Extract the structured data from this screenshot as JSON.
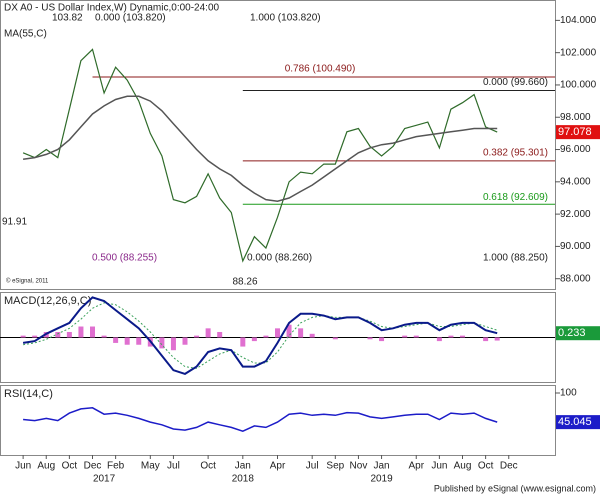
{
  "chart_data": {
    "type": "line",
    "title": "DX A0 - US Dollar Index,W) Dynamic,0:00-24:00",
    "x": [
      "2016-06",
      "2016-07",
      "2016-08",
      "2016-09",
      "2016-10",
      "2016-11",
      "2016-12",
      "2017-01",
      "2017-02",
      "2017-03",
      "2017-04",
      "2017-05",
      "2017-06",
      "2017-07",
      "2017-08",
      "2017-09",
      "2017-10",
      "2017-11",
      "2017-12",
      "2018-01",
      "2018-02",
      "2018-03",
      "2018-04",
      "2018-05",
      "2018-06",
      "2018-07",
      "2018-08",
      "2018-09",
      "2018-10",
      "2018-11",
      "2018-12",
      "2019-01",
      "2019-02",
      "2019-03",
      "2019-04",
      "2019-05",
      "2019-06",
      "2019-07",
      "2019-08",
      "2019-09",
      "2019-10",
      "2019-11"
    ],
    "xlim": [
      "2016-04",
      "2020-04"
    ],
    "xticks": [
      {
        "value": "2016-06",
        "label": "Jun"
      },
      {
        "value": "2016-08",
        "label": "Aug"
      },
      {
        "value": "2016-10",
        "label": "Oct"
      },
      {
        "value": "2016-12",
        "label": "Dec"
      },
      {
        "value": "2017-02",
        "label": "Feb"
      },
      {
        "value": "2017-05",
        "label": "May"
      },
      {
        "value": "2017-07",
        "label": "Jul"
      },
      {
        "value": "2017-10",
        "label": "Oct"
      },
      {
        "value": "2018-01",
        "label": "Jan"
      },
      {
        "value": "2018-04",
        "label": "Apr"
      },
      {
        "value": "2018-07",
        "label": "Jul"
      },
      {
        "value": "2018-09",
        "label": "Sep"
      },
      {
        "value": "2018-11",
        "label": "Nov"
      },
      {
        "value": "2019-01",
        "label": "Jan"
      },
      {
        "value": "2019-04",
        "label": "Apr"
      },
      {
        "value": "2019-06",
        "label": "Jun"
      },
      {
        "value": "2019-08",
        "label": "Aug"
      },
      {
        "value": "2019-10",
        "label": "Oct"
      },
      {
        "value": "2019-12",
        "label": "Dec"
      }
    ],
    "year_ticks": [
      {
        "value": "2017-01",
        "label": "2017"
      },
      {
        "value": "2018-01",
        "label": "2018"
      },
      {
        "value": "2019-01",
        "label": "2019"
      }
    ],
    "ylim": [
      87.3,
      105.2
    ],
    "yticks": [
      {
        "value": 88,
        "label": "88.000"
      },
      {
        "value": 90,
        "label": "90.000"
      },
      {
        "value": 92,
        "label": "92.000"
      },
      {
        "value": 94,
        "label": "94.000"
      },
      {
        "value": 96,
        "label": "96.000"
      },
      {
        "value": 98,
        "label": "98.000"
      },
      {
        "value": 100,
        "label": "100.000"
      },
      {
        "value": 102,
        "label": "102.000"
      },
      {
        "value": 104,
        "label": "104.000"
      }
    ],
    "series": [
      {
        "color": "#2f6b2a",
        "values": [
          95.8,
          95.5,
          96.0,
          95.5,
          98.5,
          101.5,
          102.2,
          99.5,
          101.1,
          100.3,
          99.0,
          97.0,
          95.6,
          92.9,
          92.7,
          93.1,
          94.5,
          93.0,
          92.1,
          89.1,
          90.6,
          89.9,
          91.8,
          94.0,
          94.6,
          94.5,
          95.1,
          95.1,
          97.1,
          97.3,
          96.2,
          95.6,
          96.2,
          97.3,
          97.5,
          97.7,
          96.1,
          98.5,
          98.9,
          99.4,
          97.4,
          97.078
        ]
      },
      {
        "name": "MA(55,C)",
        "color": "#555555",
        "values": [
          95.4,
          95.5,
          95.7,
          96.0,
          96.6,
          97.4,
          98.2,
          98.7,
          99.1,
          99.3,
          99.3,
          99.0,
          98.4,
          97.6,
          96.8,
          96.0,
          95.3,
          94.8,
          94.4,
          93.8,
          93.3,
          92.9,
          92.8,
          93.0,
          93.4,
          93.8,
          94.3,
          94.8,
          95.3,
          95.8,
          96.1,
          96.3,
          96.4,
          96.6,
          96.8,
          96.9,
          97.0,
          97.1,
          97.2,
          97.3,
          97.3,
          97.3
        ]
      }
    ],
    "fib_levels": [
      {
        "label": "0.786 (100.490)",
        "value": 100.49,
        "color": "#8b1a1a",
        "from": "2016-12"
      },
      {
        "label": "0.000 (99.660)",
        "value": 99.66,
        "color": "#222222",
        "from": "2018-01"
      },
      {
        "label": "0.382 (95.301)",
        "value": 95.301,
        "color": "#8b1a1a",
        "from": "2018-01"
      },
      {
        "label": "0.618 (92.609)",
        "value": 92.609,
        "color": "#1a9a1a",
        "from": "2018-01"
      }
    ],
    "notes": [
      {
        "label": "0.000 (103.820)",
        "color": "#222222"
      },
      {
        "label": "1.000 (103.820)",
        "color": "#222222"
      },
      {
        "label": "0.500 (88.255)",
        "color": "#8b2a8b"
      },
      {
        "label": "0.000 (88.260)",
        "color": "#222222"
      },
      {
        "label": "1.000 (88.250)",
        "color": "#222222"
      },
      {
        "label": "103.82",
        "color": "#222222"
      },
      {
        "label": "91.91",
        "color": "#222222"
      },
      {
        "label": "88.26",
        "color": "#222222"
      }
    ],
    "credit": "© eSignal, 2011",
    "footer": "Published by eSignal (www.esignal.com)",
    "macd": {
      "title": "MACD(12,26,9,C)",
      "ylim": [
        -2.5,
        2.44
      ],
      "zero": 0,
      "macd": {
        "color": "#0a1a8a",
        "values": [
          -0.3,
          -0.2,
          0.2,
          0.5,
          0.8,
          1.6,
          2.2,
          2.0,
          1.5,
          1.0,
          0.5,
          -0.2,
          -1.0,
          -1.8,
          -2.0,
          -1.6,
          -0.8,
          -0.6,
          -0.7,
          -1.6,
          -1.6,
          -1.3,
          -0.3,
          0.8,
          1.3,
          1.3,
          1.2,
          1.0,
          1.1,
          1.1,
          0.8,
          0.4,
          0.5,
          0.7,
          0.8,
          0.8,
          0.4,
          0.7,
          0.8,
          0.8,
          0.4,
          0.233
        ]
      },
      "signal": {
        "color": "#3aa05a",
        "values": [
          -0.4,
          -0.3,
          -0.1,
          0.2,
          0.5,
          1.0,
          1.6,
          1.9,
          1.8,
          1.4,
          0.9,
          0.3,
          -0.4,
          -1.1,
          -1.6,
          -1.7,
          -1.3,
          -0.9,
          -0.7,
          -1.1,
          -1.4,
          -1.4,
          -0.8,
          0.1,
          0.8,
          1.1,
          1.2,
          1.1,
          1.1,
          1.1,
          0.9,
          0.6,
          0.5,
          0.6,
          0.7,
          0.8,
          0.6,
          0.6,
          0.7,
          0.8,
          0.6,
          0.4
        ]
      },
      "histogram": {
        "color": "#e070d0",
        "values": [
          0.1,
          0.1,
          0.3,
          0.3,
          0.3,
          0.6,
          0.6,
          0.1,
          -0.3,
          -0.4,
          -0.4,
          -0.5,
          -0.6,
          -0.7,
          -0.4,
          0.1,
          0.5,
          0.3,
          0,
          -0.5,
          -0.2,
          0.1,
          0.5,
          0.7,
          0.5,
          0.2,
          0,
          -0.1,
          0,
          0,
          -0.1,
          -0.2,
          0,
          0.1,
          0.1,
          0,
          -0.2,
          0.1,
          0.1,
          0,
          -0.2,
          -0.17
        ]
      }
    },
    "rsi": {
      "title": "RSI(14,C)",
      "ylim": [
        0,
        100
      ],
      "yticks": [
        100
      ],
      "color": "#1c1cc8",
      "values": [
        50,
        48,
        52,
        48,
        62,
        70,
        72,
        60,
        62,
        58,
        52,
        45,
        40,
        32,
        30,
        35,
        45,
        40,
        35,
        28,
        38,
        35,
        45,
        60,
        62,
        58,
        60,
        58,
        63,
        62,
        55,
        52,
        55,
        58,
        60,
        60,
        50,
        62,
        60,
        62,
        52,
        45.045
      ]
    }
  }
}
